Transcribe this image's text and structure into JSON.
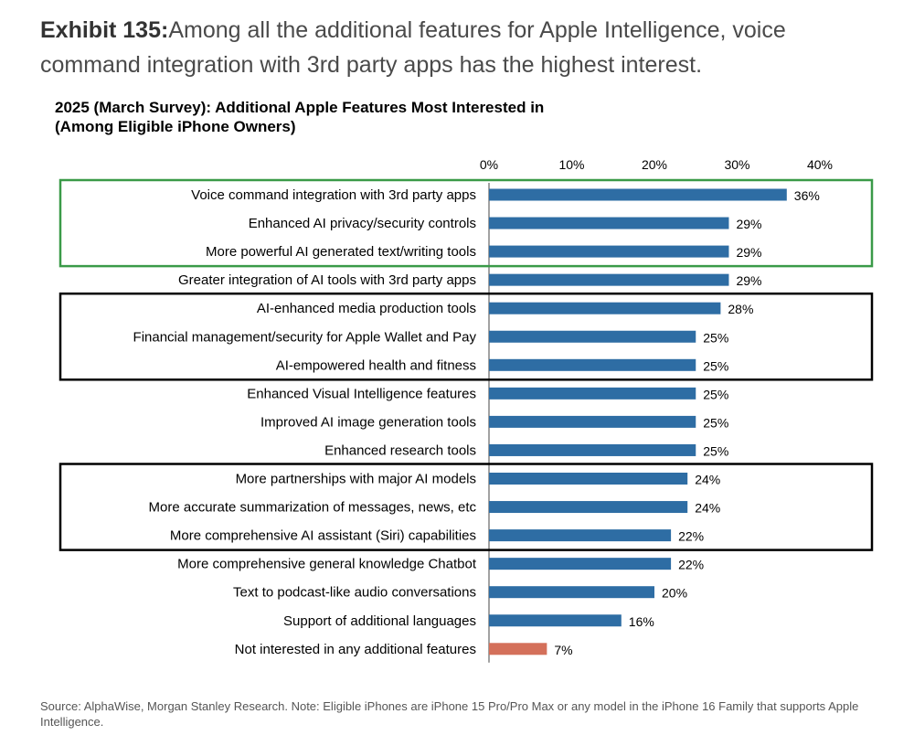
{
  "header": {
    "exhibit_label": "Exhibit 135:",
    "exhibit_text": "Among all the additional features for Apple Intelligence, voice command integration with 3rd party apps has the highest interest."
  },
  "source_note": "Source: AlphaWise, Morgan Stanley Research. Note: Eligible iPhones are iPhone 15 Pro/Pro Max or any model in the iPhone 16 Family that supports Apple Intelligence.",
  "colors": {
    "bar": "#2e6da4",
    "highlight_bar": "#d4705a",
    "green_box": "#3a9a48",
    "black_box": "#000000"
  },
  "chart_data": {
    "type": "bar",
    "orientation": "horizontal",
    "title": "2025 (March Survey): Additional Apple Features Most Interested in (Among Eligible iPhone Owners)",
    "title_lines": [
      "2025 (March Survey): Additional Apple Features Most Interested in",
      "(Among Eligible iPhone Owners)"
    ],
    "xlim": [
      0,
      40
    ],
    "ticks": [
      0,
      10,
      20,
      30,
      40
    ],
    "tick_labels": [
      "0%",
      "10%",
      "20%",
      "30%",
      "40%"
    ],
    "axis_position": "top",
    "grid": false,
    "categories": [
      "Voice command integration with 3rd party apps",
      "Enhanced AI privacy/security controls",
      "More powerful AI generated text/writing tools",
      "Greater integration of AI tools with 3rd party apps",
      "AI-enhanced media production tools",
      "Financial management/security for Apple Wallet and Pay",
      "AI-empowered health and fitness",
      "Enhanced Visual Intelligence features",
      "Improved AI image generation tools",
      "Enhanced research tools",
      "More partnerships with major AI models",
      "More accurate summarization of messages, news, etc",
      "More comprehensive AI assistant (Siri) capabilities",
      "More comprehensive general knowledge Chatbot",
      "Text to podcast-like audio conversations",
      "Support of additional languages",
      "Not interested in any additional features"
    ],
    "values": [
      36,
      29,
      29,
      29,
      28,
      25,
      25,
      25,
      25,
      25,
      24,
      24,
      22,
      22,
      20,
      16,
      7
    ],
    "value_labels": [
      "36%",
      "29%",
      "29%",
      "29%",
      "28%",
      "25%",
      "25%",
      "25%",
      "25%",
      "25%",
      "24%",
      "24%",
      "22%",
      "22%",
      "20%",
      "16%",
      "7%"
    ],
    "highlighted_index": 16,
    "group_boxes": [
      {
        "start": 0,
        "end": 2,
        "color": "green"
      },
      {
        "start": 4,
        "end": 6,
        "color": "black"
      },
      {
        "start": 10,
        "end": 12,
        "color": "black"
      }
    ]
  }
}
